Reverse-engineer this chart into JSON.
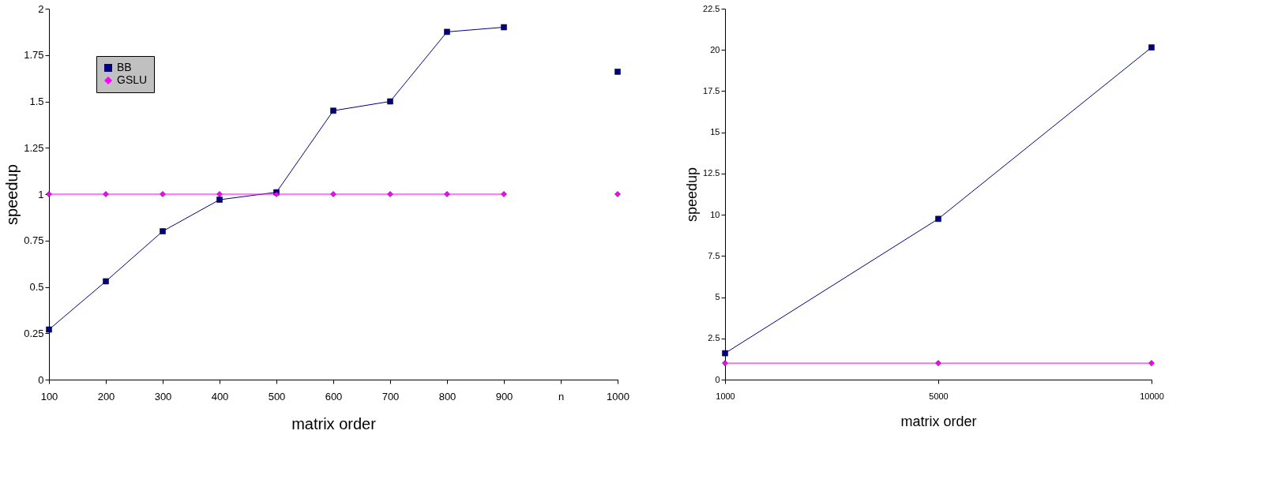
{
  "chart_data": [
    {
      "type": "line",
      "xlabel": "matrix order",
      "ylabel": "speedup",
      "categories": [
        "100",
        "200",
        "300",
        "400",
        "500",
        "600",
        "700",
        "800",
        "900",
        "n",
        "1000"
      ],
      "ylim": [
        0,
        2
      ],
      "yticks": [
        0,
        0.25,
        0.5,
        0.75,
        1,
        1.25,
        1.5,
        1.75,
        2
      ],
      "grid": false,
      "legend": "top left",
      "series": [
        {
          "name": "BB",
          "color": "#000080",
          "marker": "square",
          "values": [
            0.27,
            0.53,
            0.8,
            0.97,
            1.01,
            1.45,
            1.5,
            1.875,
            1.9,
            null,
            1.66
          ]
        },
        {
          "name": "GSLU",
          "color": "#ff00ff",
          "marker": "diamond",
          "values": [
            1,
            1,
            1,
            1,
            1,
            1,
            1,
            1,
            1,
            null,
            1
          ]
        }
      ]
    },
    {
      "type": "line",
      "xlabel": "matrix order",
      "ylabel": "speedup",
      "categories": [
        "1000",
        "5000",
        "10000"
      ],
      "ylim": [
        0,
        22.5
      ],
      "yticks": [
        0,
        2.5,
        5,
        7.5,
        10,
        12.5,
        15,
        17.5,
        20,
        22.5
      ],
      "grid": false,
      "legend": "top left",
      "series": [
        {
          "name": "BB",
          "color": "#000080",
          "marker": "square",
          "values": [
            1.6,
            9.75,
            20.15
          ]
        },
        {
          "name": "GSLU",
          "color": "#ff00ff",
          "marker": "diamond",
          "values": [
            1,
            1,
            1
          ]
        }
      ]
    }
  ]
}
